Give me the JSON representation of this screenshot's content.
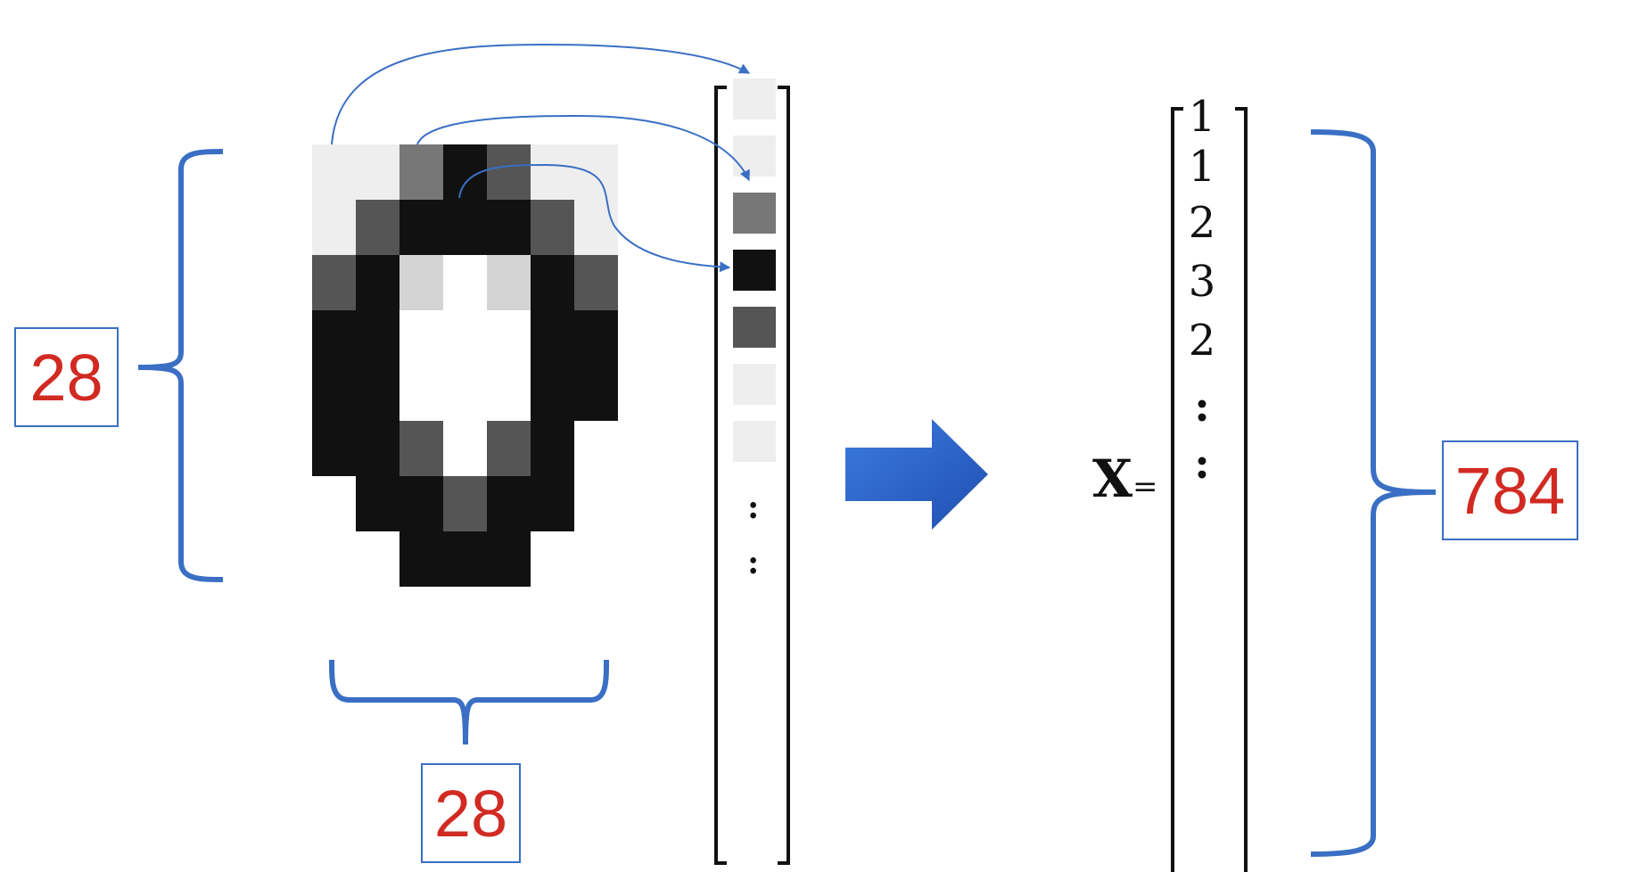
{
  "labels": {
    "height": "28",
    "width": "28",
    "vector_length": "784"
  },
  "vector": {
    "name": "X",
    "equals": "=",
    "values": [
      "1",
      "1",
      "2",
      "3",
      "2"
    ],
    "continuation": [
      ":",
      ":"
    ]
  },
  "flattened_column": {
    "continuation": [
      ":",
      ":"
    ]
  },
  "colors": {
    "brace": "#3a6fc4",
    "label_text": "#d12a22",
    "arrow_fill": "#2e64c8",
    "white_pixel": "#eeeeee",
    "light_pixel": "#d4d4d4",
    "mid_pixel": "#777777",
    "dark_pixel": "#555555",
    "black_pixel": "#111111"
  },
  "image_grid_shades": [
    [
      "white",
      "white",
      "mid",
      "black",
      "dark",
      "white",
      "white"
    ],
    [
      "white",
      "dark",
      "black",
      "black",
      "black",
      "dark",
      "white"
    ],
    [
      "dark",
      "black",
      "light",
      "none",
      "light",
      "black",
      "dark"
    ],
    [
      "black",
      "black",
      "none",
      "none",
      "none",
      "black",
      "black"
    ],
    [
      "black",
      "black",
      "none",
      "none",
      "none",
      "black",
      "black"
    ],
    [
      "black",
      "black",
      "dark",
      "none",
      "dark",
      "black",
      "none"
    ],
    [
      "none",
      "black",
      "black",
      "dark",
      "black",
      "black",
      "none"
    ],
    [
      "none",
      "none",
      "black",
      "black",
      "black",
      "none",
      "none"
    ]
  ],
  "column_shades": [
    "white",
    "white",
    "mid",
    "black",
    "dark",
    "white",
    "white"
  ]
}
